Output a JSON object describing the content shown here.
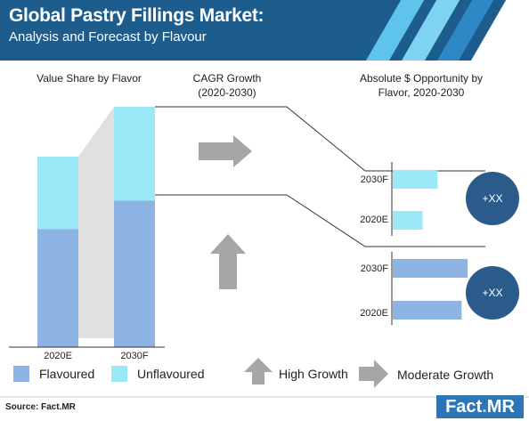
{
  "header": {
    "title": "Global Pastry Fillings Market:",
    "subtitle": "Analysis and Forecast by Flavour"
  },
  "columns": {
    "value_share": "Value Share by Flavor",
    "cagr": "CAGR Growth (2020-2030)",
    "opportunity": "Absolute $ Opportunity by Flavor, 2020-2030"
  },
  "colors": {
    "flavoured": "#8db4e2",
    "unflavoured": "#9ce8f9",
    "bubble": "#2b5b8a",
    "arrow": "#a6a6a6",
    "header": "#1d5d8e"
  },
  "chart_data": [
    {
      "type": "bar",
      "stacked": true,
      "title": "Value Share by Flavor",
      "categories": [
        "2020E",
        "2030F"
      ],
      "series": [
        {
          "name": "Flavoured",
          "values": [
            62,
            61
          ]
        },
        {
          "name": "Unflavoured",
          "values": [
            38,
            39
          ]
        }
      ],
      "ylim": [
        0,
        100
      ]
    },
    {
      "type": "bar",
      "orientation": "horizontal",
      "title": "Absolute $ Opportunity by Flavor, 2020-2030",
      "segment": "Unflavoured",
      "categories": [
        "2030F",
        "2020E"
      ],
      "values": [
        60,
        40
      ],
      "annotation": "+XX"
    },
    {
      "type": "bar",
      "orientation": "horizontal",
      "title": "Absolute $ Opportunity by Flavor, 2020-2030",
      "segment": "Flavoured",
      "categories": [
        "2030F",
        "2020E"
      ],
      "values": [
        100,
        92
      ],
      "annotation": "+XX"
    }
  ],
  "legend": {
    "flavoured": "Flavoured",
    "unflavoured": "Unflavoured",
    "high_growth": "High Growth",
    "moderate_growth": "Moderate Growth"
  },
  "footer": {
    "source": "Source: Fact.MR",
    "logo_main": "Fact",
    "logo_dot": ".",
    "logo_end": "MR"
  }
}
